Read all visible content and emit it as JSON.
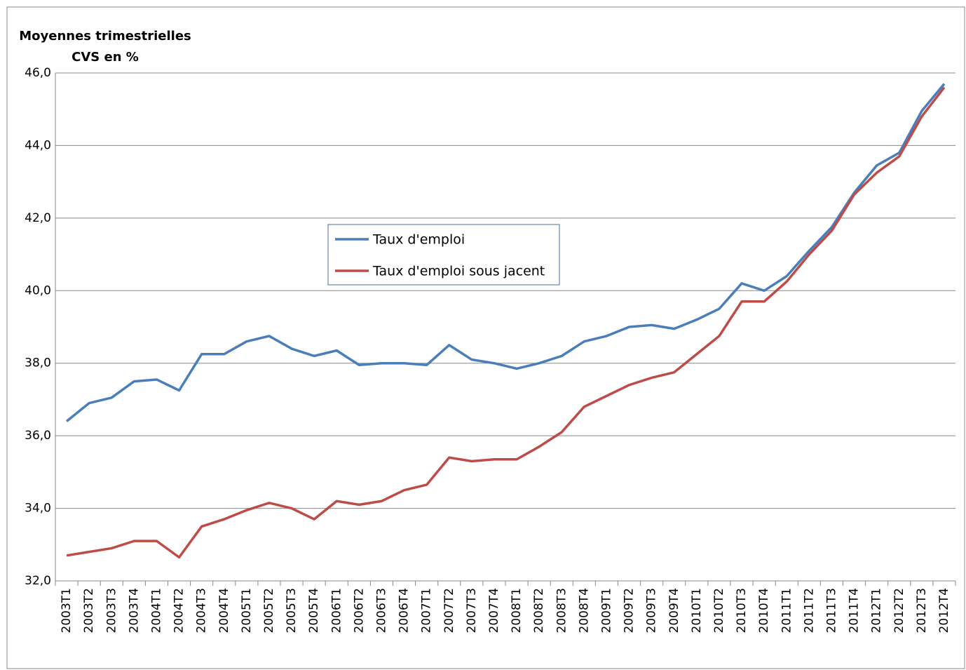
{
  "chart_data": {
    "type": "line",
    "title": "Moyennes trimestrielles",
    "subtitle": "CVS en %",
    "categories": [
      "2003T1",
      "2003T2",
      "2003T3",
      "2003T4",
      "2004T1",
      "2004T2",
      "2004T3",
      "2004T4",
      "2005T1",
      "2005T2",
      "2005T3",
      "2005T4",
      "2006T1",
      "2006T2",
      "2006T3",
      "2006T4",
      "2007T1",
      "2007T2",
      "2007T3",
      "2007T4",
      "2008T1",
      "2008T2",
      "2008T3",
      "2008T4",
      "2009T1",
      "2009T2",
      "2009T3",
      "2009T4",
      "2010T1",
      "2010T2",
      "2010T3",
      "2010T4",
      "2011T1",
      "2011T2",
      "2011T3",
      "2011T4",
      "2012T1",
      "2012T2",
      "2012T3",
      "2012T4"
    ],
    "series": [
      {
        "name": "Taux d'emploi",
        "color": "#4a7ebb",
        "values": [
          36.4,
          36.9,
          37.05,
          37.5,
          37.55,
          37.25,
          38.25,
          38.25,
          38.6,
          38.75,
          38.4,
          38.2,
          38.35,
          37.95,
          38.0,
          38.0,
          37.95,
          38.5,
          38.1,
          38.0,
          37.85,
          38.0,
          38.2,
          38.6,
          38.75,
          39.0,
          39.05,
          38.95,
          39.2,
          39.5,
          40.2,
          40.0,
          40.4,
          41.1,
          41.75,
          42.7,
          43.45,
          43.8,
          44.95,
          45.7
        ]
      },
      {
        "name": "Taux d'emploi sous jacent",
        "color": "#be4b48",
        "values": [
          32.7,
          32.8,
          32.9,
          33.1,
          33.1,
          32.65,
          33.5,
          33.7,
          33.95,
          34.15,
          34.0,
          33.7,
          34.2,
          34.1,
          34.2,
          34.5,
          34.65,
          35.4,
          35.3,
          35.35,
          35.35,
          35.7,
          36.1,
          36.8,
          37.1,
          37.4,
          37.6,
          37.75,
          38.25,
          38.75,
          39.7,
          39.7,
          40.25,
          41.0,
          41.65,
          42.65,
          43.25,
          43.7,
          44.8,
          45.6
        ]
      }
    ],
    "ylim": [
      32,
      46
    ],
    "yticks": [
      {
        "value": 32,
        "label": "32,0"
      },
      {
        "value": 34,
        "label": "34,0"
      },
      {
        "value": 36,
        "label": "36,0"
      },
      {
        "value": 38,
        "label": "38,0"
      },
      {
        "value": 40,
        "label": "40,0"
      },
      {
        "value": 42,
        "label": "42,0"
      },
      {
        "value": 44,
        "label": "44,0"
      },
      {
        "value": 46,
        "label": "46,0"
      }
    ],
    "grid": true,
    "legend": "center"
  }
}
